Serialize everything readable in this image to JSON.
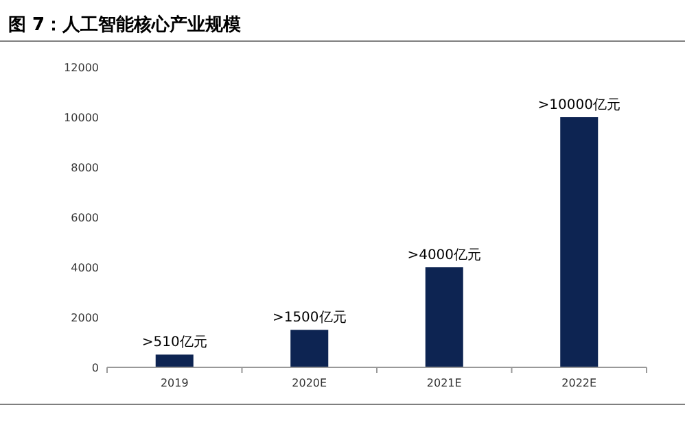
{
  "chart_data": {
    "type": "bar",
    "title": "图 7：人工智能核心产业规模",
    "categories": [
      "2019",
      "2020E",
      "2021E",
      "2022E"
    ],
    "values": [
      510,
      1500,
      4000,
      10000
    ],
    "value_labels": [
      ">510亿元",
      ">1500亿元",
      ">4000亿元",
      ">10000亿元"
    ],
    "color": "#0d2452",
    "ylim": [
      0,
      12000
    ],
    "yticks": [
      0,
      2000,
      4000,
      6000,
      8000,
      10000,
      12000
    ],
    "grid": false
  }
}
